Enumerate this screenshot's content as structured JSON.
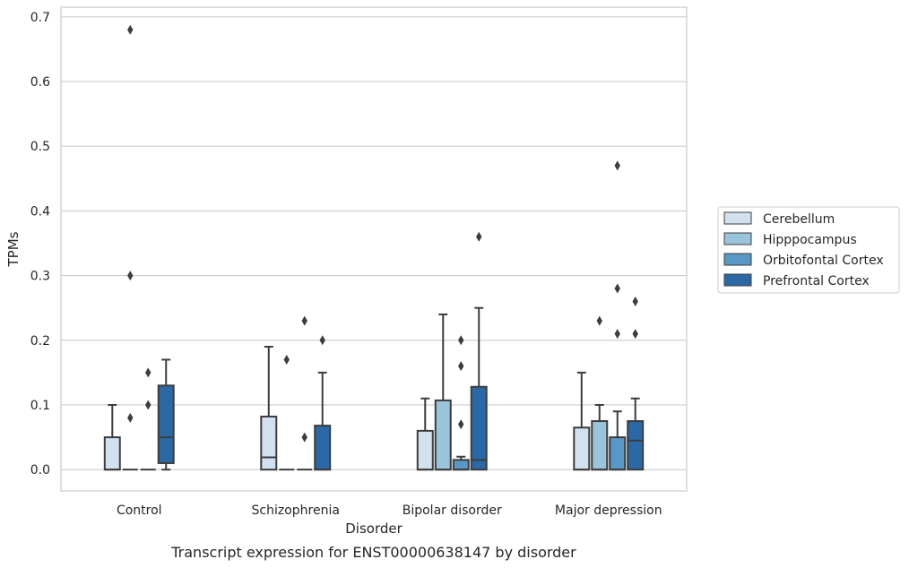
{
  "chart_data": {
    "type": "boxplot",
    "title": "",
    "caption": "Transcript expression for ENST00000638147 by disorder",
    "xlabel": "Disorder",
    "ylabel": "TPMs",
    "ylim": [
      -0.033,
      0.715
    ],
    "yticks": [
      0.0,
      0.1,
      0.2,
      0.3,
      0.4,
      0.5,
      0.6,
      0.7
    ],
    "ytick_labels": [
      "0.0",
      "0.1",
      "0.2",
      "0.3",
      "0.4",
      "0.5",
      "0.6",
      "0.7"
    ],
    "grid": "horizontal",
    "legend_position": "right, outside plot",
    "categories": [
      "Control",
      "Schizophrenia",
      "Bipolar disorder",
      "Major depression"
    ],
    "series": [
      {
        "name": "Cerebellum",
        "color": "#d1e1f0",
        "boxes": [
          {
            "whislo": 0.0,
            "q1": 0.0,
            "median": 0.0,
            "q3": 0.05,
            "whishi": 0.1,
            "fliers": []
          },
          {
            "whislo": 0.0,
            "q1": 0.0,
            "median": 0.019,
            "q3": 0.082,
            "whishi": 0.19,
            "fliers": []
          },
          {
            "whislo": 0.0,
            "q1": 0.0,
            "median": 0.0,
            "q3": 0.06,
            "whishi": 0.11,
            "fliers": []
          },
          {
            "whislo": 0.0,
            "q1": 0.0,
            "median": 0.0,
            "q3": 0.065,
            "whishi": 0.15,
            "fliers": []
          }
        ]
      },
      {
        "name": "Hipppocampus",
        "color": "#9ac3dc",
        "boxes": [
          {
            "whislo": 0.0,
            "q1": 0.0,
            "median": 0.0,
            "q3": 0.0,
            "whishi": 0.0,
            "fliers": [
              0.08,
              0.3,
              0.68
            ]
          },
          {
            "whislo": 0.0,
            "q1": 0.0,
            "median": 0.0,
            "q3": 0.0,
            "whishi": 0.0,
            "fliers": [
              0.17
            ]
          },
          {
            "whislo": 0.0,
            "q1": 0.0,
            "median": 0.0,
            "q3": 0.107,
            "whishi": 0.24,
            "fliers": []
          },
          {
            "whislo": 0.0,
            "q1": 0.0,
            "median": 0.0,
            "q3": 0.075,
            "whishi": 0.1,
            "fliers": [
              0.23
            ]
          }
        ]
      },
      {
        "name": "Orbitofontal Cortex",
        "color": "#5898c7",
        "boxes": [
          {
            "whislo": 0.0,
            "q1": 0.0,
            "median": 0.0,
            "q3": 0.0,
            "whishi": 0.0,
            "fliers": [
              0.1,
              0.15
            ]
          },
          {
            "whislo": 0.0,
            "q1": 0.0,
            "median": 0.0,
            "q3": 0.0,
            "whishi": 0.0,
            "fliers": [
              0.05,
              0.23
            ]
          },
          {
            "whislo": 0.0,
            "q1": 0.0,
            "median": 0.0,
            "q3": 0.015,
            "whishi": 0.02,
            "fliers": [
              0.07,
              0.16,
              0.2
            ]
          },
          {
            "whislo": 0.0,
            "q1": 0.0,
            "median": 0.0,
            "q3": 0.05,
            "whishi": 0.09,
            "fliers": [
              0.21,
              0.28,
              0.47
            ]
          }
        ]
      },
      {
        "name": "Prefrontal Cortex",
        "color": "#2a68a6",
        "boxes": [
          {
            "whislo": 0.0,
            "q1": 0.01,
            "median": 0.05,
            "q3": 0.13,
            "whishi": 0.17,
            "fliers": []
          },
          {
            "whislo": 0.0,
            "q1": 0.0,
            "median": 0.0,
            "q3": 0.068,
            "whishi": 0.15,
            "fliers": [
              0.2
            ]
          },
          {
            "whislo": 0.0,
            "q1": 0.0,
            "median": 0.015,
            "q3": 0.128,
            "whishi": 0.25,
            "fliers": [
              0.36
            ]
          },
          {
            "whislo": 0.0,
            "q1": 0.0,
            "median": 0.045,
            "q3": 0.075,
            "whishi": 0.11,
            "fliers": [
              0.21,
              0.26
            ]
          }
        ]
      }
    ]
  }
}
